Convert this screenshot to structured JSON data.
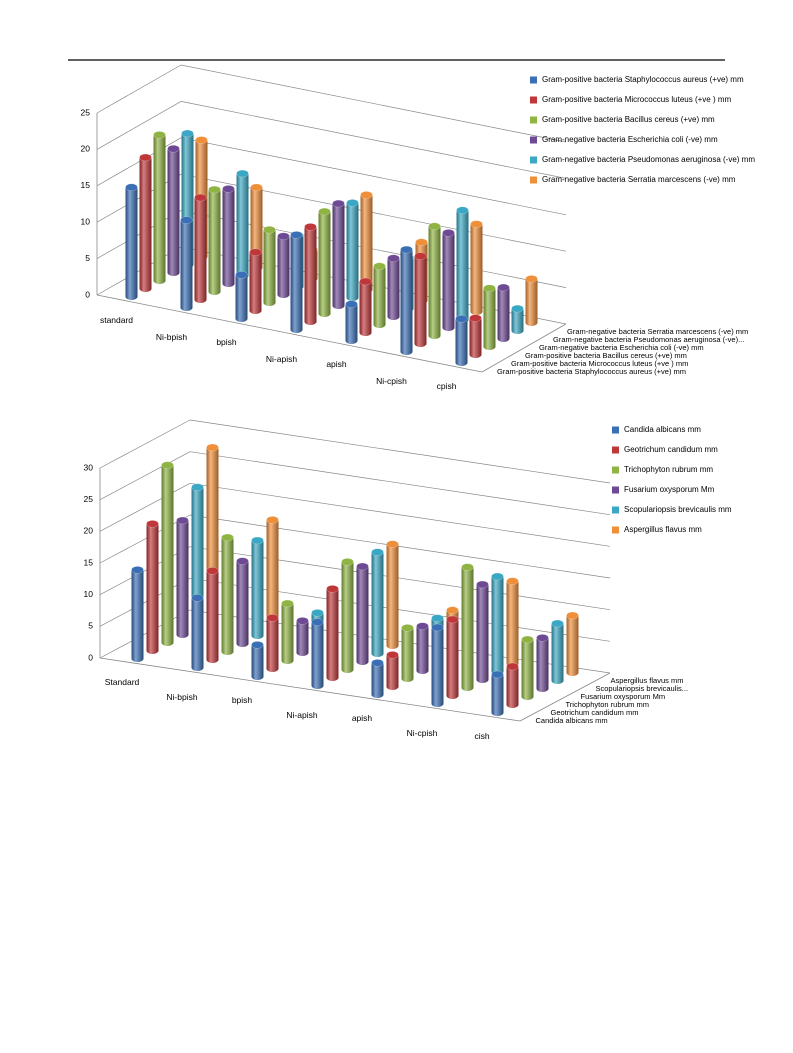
{
  "chart_data": [
    {
      "type": "bar3d",
      "categories": [
        "standard",
        "Ni-bpish",
        "bpish",
        "Ni-apish",
        "apish",
        "Ni-cpish",
        "cpish"
      ],
      "series": [
        {
          "name": "Gram-positive  bacteria Staphylococcus aureus (+ve) mm",
          "color": "#3a6fb5",
          "values": [
            15,
            12,
            6,
            13,
            5,
            14,
            6
          ]
        },
        {
          "name": "Gram-positive  bacteria Micrococcus luteus (+ve ) mm",
          "color": "#c0373a",
          "values": [
            18,
            14,
            8,
            13,
            7,
            12,
            5
          ]
        },
        {
          "name": "Gram-positive  bacteria Bacillus cereus (+ve) mm",
          "color": "#8fb443",
          "values": [
            20,
            14,
            10,
            14,
            8,
            15,
            8
          ]
        },
        {
          "name": "Gram-negative bacteria Escherichia coli (-ve) mm",
          "color": "#6e4a94",
          "values": [
            17,
            13,
            8,
            14,
            8,
            13,
            7
          ]
        },
        {
          "name": "Gram-negative bacteria Pseudomonas aeruginosa (-ve) mm",
          "color": "#3aa8c4",
          "values": [
            18,
            14,
            7,
            13,
            7,
            15,
            3
          ]
        },
        {
          "name": "Gram-negative bacteria  Serratia marcescens (-ve) mm",
          "color": "#ef8f3a",
          "values": [
            16,
            11,
            4,
            13,
            8,
            12,
            6
          ]
        }
      ],
      "depth_labels": [
        "Gram-positive  bacteria Staphylococcus aureus (+ve) mm",
        "Gram-positive  bacteria Micrococcus luteus (+ve ) mm",
        "Gram-positive  bacteria Bacillus cereus (+ve) mm",
        "Gram-negative bacteria Escherichia coli (-ve) mm",
        "Gram-negative bacteria Pseudomonas aeruginosa (-ve)...",
        "Gram-negative bacteria  Serratia marcescens (-ve) mm"
      ],
      "ylim": [
        0,
        25
      ],
      "yticks": [
        0,
        5,
        10,
        15,
        20,
        25
      ],
      "grid": true,
      "legend": "right"
    },
    {
      "type": "bar3d",
      "categories": [
        "Standard",
        "Ni-bpish",
        "bpish",
        "Ni-apish",
        "apish",
        "Ni-cpish",
        "cish"
      ],
      "series": [
        {
          "name": "Candida albicans mm",
          "color": "#3a6fb5",
          "values": [
            14,
            11,
            5,
            10,
            5,
            12,
            6
          ]
        },
        {
          "name": "Geotrichum candidum mm",
          "color": "#c0373a",
          "values": [
            20,
            14,
            8,
            14,
            5,
            12,
            6
          ]
        },
        {
          "name": "Trichophyton rubrum mm",
          "color": "#8fb443",
          "values": [
            28,
            18,
            9,
            17,
            8,
            19,
            9
          ]
        },
        {
          "name": "Fusarium oxysporum Mm",
          "color": "#6e4a94",
          "values": [
            18,
            13,
            5,
            15,
            7,
            15,
            8
          ]
        },
        {
          "name": "Scopulariopsis brevicaulis mm",
          "color": "#3aa8c4",
          "values": [
            22,
            15,
            5,
            16,
            7,
            15,
            9
          ]
        },
        {
          "name": "Aspergillus flavus mm",
          "color": "#ef8f3a",
          "values": [
            27,
            17,
            5,
            16,
            7,
            13,
            9
          ]
        }
      ],
      "depth_labels": [
        "Candida albicans mm",
        "Geotrichum candidum mm",
        "Trichophyton rubrum mm",
        "Fusarium oxysporum Mm",
        "Scopulariopsis brevicaulis...",
        "Aspergillus flavus mm"
      ],
      "ylim": [
        0,
        30
      ],
      "yticks": [
        0,
        5,
        10,
        15,
        20,
        25,
        30
      ],
      "grid": true,
      "legend": "right"
    }
  ]
}
